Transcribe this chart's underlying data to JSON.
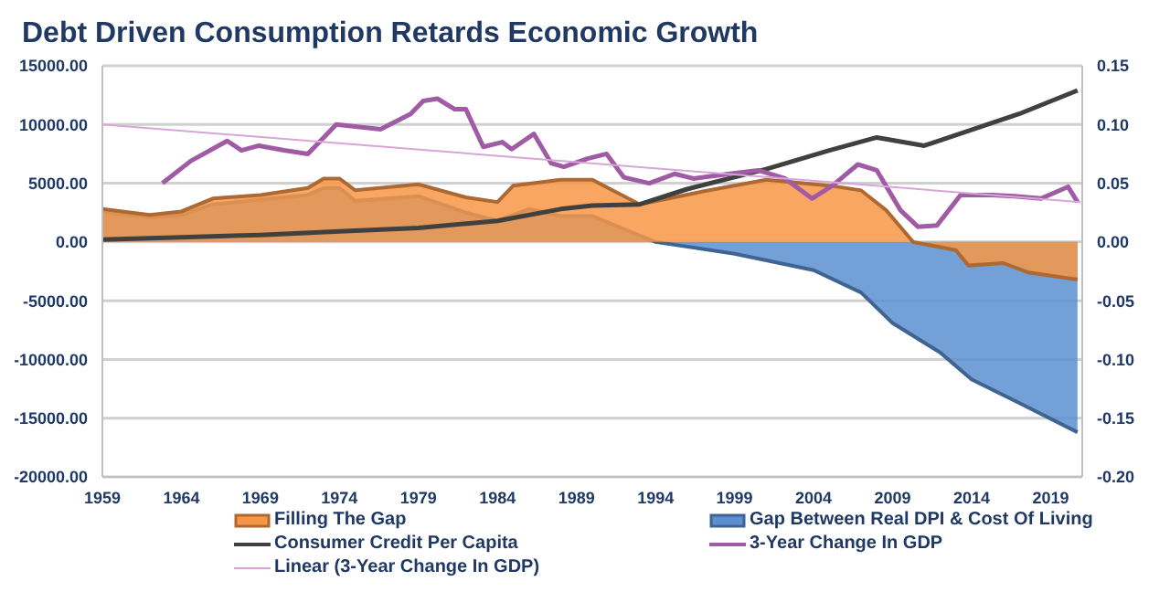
{
  "chart_data": {
    "type": "area",
    "title": "Debt Driven Consumption Retards Economic Growth",
    "xlim": [
      1959,
      2021
    ],
    "xticks": [
      1959,
      1964,
      1969,
      1974,
      1979,
      1984,
      1989,
      1994,
      1999,
      2004,
      2009,
      2014,
      2019
    ],
    "ylim": [
      -20000,
      15000
    ],
    "yticks": [
      {
        "value": -20000,
        "label": "-20000.00"
      },
      {
        "value": -15000,
        "label": "-15000.00"
      },
      {
        "value": -10000,
        "label": "-10000.00"
      },
      {
        "value": -5000,
        "label": "-5000.00"
      },
      {
        "value": 0,
        "label": "0.00"
      },
      {
        "value": 5000,
        "label": "5000.00"
      },
      {
        "value": 10000,
        "label": "10000.00"
      },
      {
        "value": 15000,
        "label": "15000.00"
      }
    ],
    "y2lim": [
      -0.2,
      0.15
    ],
    "y2ticks": [
      {
        "value": -0.2,
        "label": "-0.20"
      },
      {
        "value": -0.15,
        "label": "-0.15"
      },
      {
        "value": -0.1,
        "label": "-0.10"
      },
      {
        "value": -0.05,
        "label": "-0.05"
      },
      {
        "value": 0,
        "label": "0.00"
      },
      {
        "value": 0.05,
        "label": "0.05"
      },
      {
        "value": 0.1,
        "label": "0.10"
      },
      {
        "value": 0.15,
        "label": "0.15"
      }
    ],
    "grid": "y",
    "legend": "bottom",
    "marker": "none",
    "series": [
      {
        "name": "Filling The Gap",
        "color": "#f79646",
        "x": [
          1959,
          1962,
          1964,
          1966,
          1969,
          1972,
          1973,
          1974,
          1975,
          1979,
          1982,
          1984,
          1985,
          1988,
          1990,
          1993,
          1997,
          2001,
          2005,
          2007,
          2008.6,
          2010.3,
          2013,
          2013.8,
          2016,
          2017.6,
          2020.7
        ],
        "values": [
          2800,
          2300,
          2600,
          3700,
          4000,
          4600,
          5400,
          5400,
          4400,
          4900,
          3800,
          3400,
          4800,
          5300,
          5300,
          3200,
          4300,
          5300,
          4800,
          4400,
          2700,
          0,
          -700,
          -2000,
          -1800,
          -2600,
          -3200
        ]
      },
      {
        "name": "Gap Between Real DPI & Cost Of Living",
        "color": "#5b8fcf",
        "x": [
          1959,
          1962,
          1964,
          1966,
          1969,
          1972,
          1973,
          1974,
          1975,
          1979,
          1982,
          1984,
          1986,
          1988,
          1990,
          1994,
          1999,
          2004,
          2007,
          2009,
          2012,
          2014,
          2017,
          2020.7
        ],
        "values": [
          2600,
          2100,
          2300,
          3200,
          3600,
          4000,
          4600,
          4600,
          3500,
          3900,
          2500,
          1800,
          2800,
          2200,
          2200,
          0,
          -1000,
          -2400,
          -4300,
          -6900,
          -9400,
          -11700,
          -13700,
          -16200
        ]
      },
      {
        "name": "Consumer Credit Per Capita",
        "type": "line",
        "color": "#404040",
        "x": [
          1959,
          1964,
          1969,
          1974,
          1979,
          1984,
          1988,
          1990,
          1993,
          1996,
          2001,
          2005,
          2008,
          2011,
          2017,
          2020.7
        ],
        "values": [
          200,
          400,
          600,
          900,
          1200,
          1800,
          2800,
          3100,
          3200,
          4500,
          6200,
          7800,
          8900,
          8200,
          10900,
          12900
        ]
      },
      {
        "name": "3-Year Change In GDP",
        "type": "line",
        "axis": "y2",
        "color": "#a05ba5",
        "x": [
          1962.8,
          1964.6,
          1966.9,
          1967.8,
          1968.9,
          1970.5,
          1972,
          1973.8,
          1976.6,
          1978.5,
          1979.3,
          1980.2,
          1981.3,
          1982,
          1983.1,
          1984.3,
          1984.9,
          1986.3,
          1987.4,
          1988.2,
          1989.7,
          1990.9,
          1992,
          1993.6,
          1995.2,
          1996.4,
          1998.7,
          2000.5,
          2002.2,
          2003.9,
          2005.2,
          2006.8,
          2008,
          2009.5,
          2010.6,
          2011.8,
          2013.3,
          2015.3,
          2016.7,
          2018.4,
          2020.1,
          2020.7
        ],
        "values": [
          0.05,
          0.069,
          0.086,
          0.078,
          0.082,
          0.078,
          0.075,
          0.1,
          0.096,
          0.109,
          0.12,
          0.122,
          0.113,
          0.113,
          0.081,
          0.085,
          0.079,
          0.092,
          0.067,
          0.064,
          0.071,
          0.075,
          0.055,
          0.05,
          0.058,
          0.054,
          0.058,
          0.061,
          0.054,
          0.037,
          0.048,
          0.066,
          0.061,
          0.027,
          0.013,
          0.014,
          0.04,
          0.04,
          0.039,
          0.037,
          0.047,
          0.034
        ]
      },
      {
        "name": "Linear (3-Year Change In GDP)",
        "type": "line",
        "axis": "y2",
        "color": "#d6a6d9",
        "x": [
          1959,
          2020.9
        ],
        "values": [
          0.1,
          0.034
        ]
      }
    ]
  }
}
